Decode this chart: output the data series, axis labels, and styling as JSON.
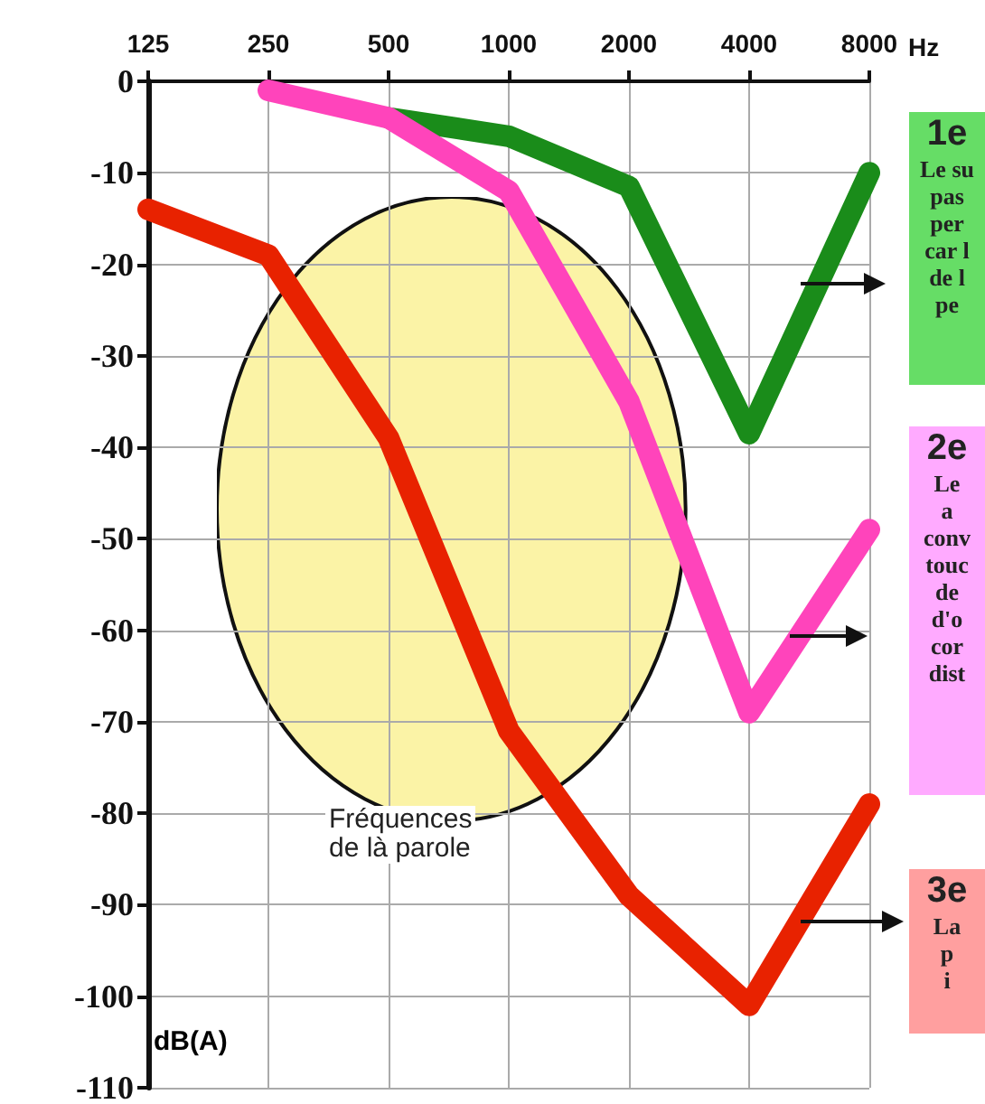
{
  "chart_data": {
    "type": "line",
    "xlabel": "Hz",
    "ylabel": "dB(A)",
    "x": [
      125,
      250,
      500,
      1000,
      2000,
      4000,
      8000
    ],
    "series": [
      {
        "color": "#1a8c1a",
        "values": [
          null,
          null,
          -4,
          -6,
          -11.5,
          -38.5,
          -10
        ]
      },
      {
        "color": "#ff44bb",
        "values": [
          null,
          -1,
          -4,
          -12,
          -35,
          -69,
          -49
        ]
      },
      {
        "color": "#e82200",
        "values": [
          -14,
          -19,
          -39,
          -71,
          -89,
          -101,
          -79
        ]
      }
    ],
    "log": "x",
    "xlim": [
      125,
      8000
    ],
    "xticks": [
      125,
      250,
      500,
      1000,
      2000,
      4000,
      8000
    ],
    "ylim": [
      -110,
      0
    ],
    "yticks": [
      0,
      -10,
      -20,
      -30,
      -40,
      -50,
      -60,
      -70,
      -80,
      -90,
      -100,
      -110
    ],
    "grid": true,
    "marker": "none",
    "line_style": "solid",
    "annotations": [
      "Fréquences\nde là parole",
      "1e\nLe su\npas\nper\ncar l\nde l\npe",
      "2e\nLe\na\nconv\ntouc\nde\nd'o\ncor\ndist",
      "3e\nLa\np\ni"
    ]
  }
}
